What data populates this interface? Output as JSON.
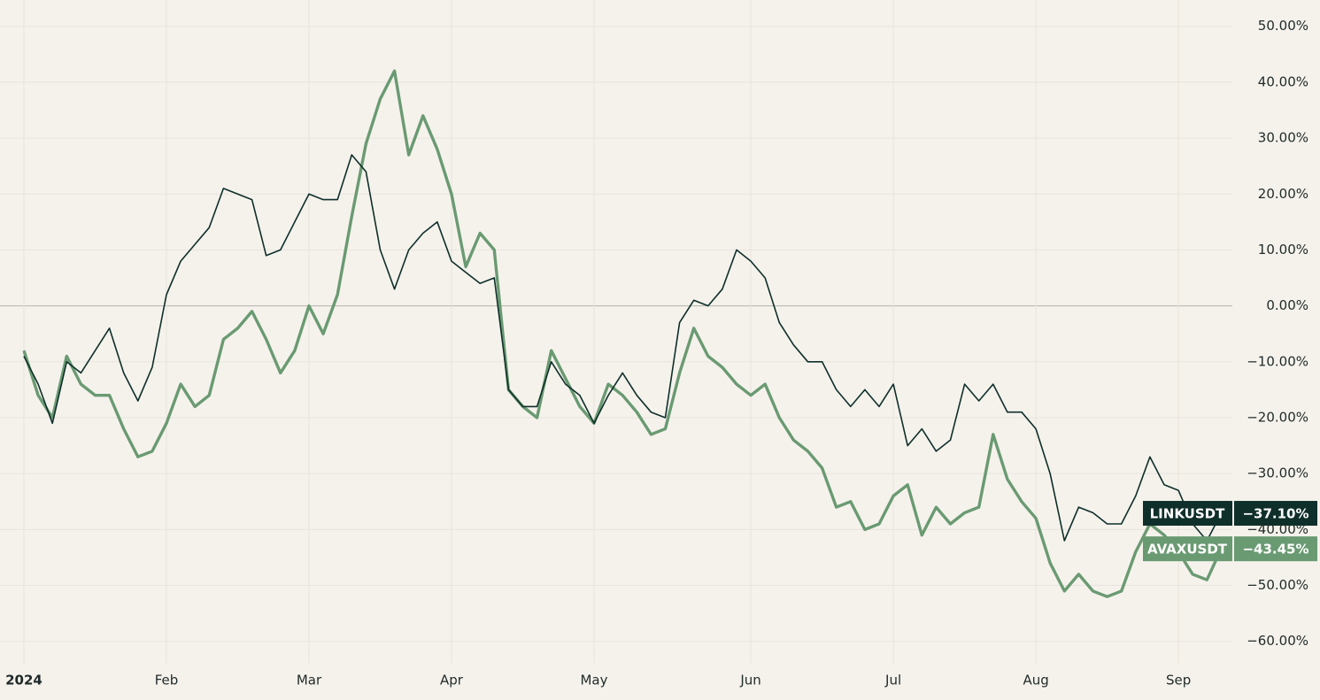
{
  "chart_data": {
    "type": "line",
    "categories": [
      "2024",
      null,
      null,
      null,
      null,
      null,
      null,
      null,
      null,
      null,
      "Feb",
      null,
      null,
      null,
      null,
      null,
      null,
      null,
      null,
      null,
      "Mar",
      null,
      null,
      null,
      null,
      null,
      null,
      null,
      null,
      null,
      "Apr",
      null,
      null,
      null,
      null,
      null,
      null,
      null,
      null,
      null,
      "May",
      null,
      null,
      null,
      null,
      null,
      null,
      null,
      null,
      null,
      null,
      "Jun",
      null,
      null,
      null,
      null,
      null,
      null,
      null,
      null,
      null,
      "Jul",
      null,
      null,
      null,
      null,
      null,
      null,
      null,
      null,
      null,
      "Aug",
      null,
      null,
      null,
      null,
      null,
      null,
      null,
      null,
      null,
      "Sep",
      null,
      null,
      null
    ],
    "series": [
      {
        "name": "LINKUSDT",
        "color": "#0f2f2a",
        "values": [
          -9,
          -14,
          -21,
          -10,
          -12,
          -8,
          -4,
          -12,
          -17,
          -11,
          2,
          8,
          11,
          14,
          21,
          20,
          19,
          9,
          10,
          15,
          20,
          19,
          19,
          27,
          24,
          10,
          3,
          10,
          13,
          15,
          8,
          6,
          4,
          5,
          -15,
          -18,
          -18,
          -10,
          -14,
          -16,
          -21,
          -16,
          -12,
          -16,
          -19,
          -20,
          -3,
          1,
          0,
          3,
          10,
          8,
          5,
          -3,
          -7,
          -10,
          -10,
          -15,
          -18,
          -15,
          -18,
          -14,
          -25,
          -22,
          -26,
          -24,
          -14,
          -17,
          -14,
          -19,
          -19,
          -22,
          -30,
          -42,
          -36,
          -37,
          -39,
          -39,
          -34,
          -27,
          -32,
          -33,
          -39,
          -42,
          -37.1
        ],
        "value_labels": [
          null,
          null,
          null,
          null,
          null,
          null,
          null,
          null,
          null,
          null,
          null,
          null,
          null,
          null,
          null,
          null,
          null,
          null,
          null,
          null,
          null,
          null,
          null,
          null,
          null,
          null,
          null,
          null,
          null,
          null,
          null,
          null,
          null,
          null,
          null,
          null,
          null,
          null,
          null,
          null,
          null,
          null,
          null,
          null,
          null,
          null,
          null,
          null,
          null,
          null,
          null,
          null,
          null,
          null,
          null,
          null,
          null,
          null,
          null,
          null,
          null,
          null,
          null,
          null,
          null,
          null,
          null,
          null,
          null,
          null,
          null,
          null,
          null,
          null,
          null,
          null,
          null,
          null,
          null,
          null,
          null,
          null,
          null,
          null,
          "−37.10%"
        ]
      },
      {
        "name": "AVAXUSDT",
        "color": "#6a9a72",
        "values": [
          -8,
          -16,
          -20,
          -9,
          -14,
          -16,
          -16,
          -22,
          -27,
          -26,
          -21,
          -14,
          -18,
          -16,
          -6,
          -4,
          -1,
          -6,
          -12,
          -8,
          0,
          -5,
          2,
          16,
          29,
          37,
          42,
          27,
          34,
          28,
          20,
          7,
          13,
          10,
          -15,
          -18,
          -20,
          -8,
          -13,
          -18,
          -21,
          -14,
          -16,
          -19,
          -23,
          -22,
          -12,
          -4,
          -9,
          -11,
          -14,
          -16,
          -14,
          -20,
          -24,
          -26,
          -29,
          -36,
          -35,
          -40,
          -39,
          -34,
          -32,
          -41,
          -36,
          -39,
          -37,
          -36,
          -23,
          -31,
          -35,
          -38,
          -46,
          -51,
          -48,
          -51,
          -52,
          -51,
          -44,
          -39,
          -41,
          -44,
          -48,
          -49,
          -43.45
        ],
        "value_labels": [
          null,
          null,
          null,
          null,
          null,
          null,
          null,
          null,
          null,
          null,
          null,
          null,
          null,
          null,
          null,
          null,
          null,
          null,
          null,
          null,
          null,
          null,
          null,
          null,
          null,
          null,
          null,
          null,
          null,
          null,
          null,
          null,
          null,
          null,
          null,
          null,
          null,
          null,
          null,
          null,
          null,
          null,
          null,
          null,
          null,
          null,
          null,
          null,
          null,
          null,
          null,
          null,
          null,
          null,
          null,
          null,
          null,
          null,
          null,
          null,
          null,
          null,
          null,
          null,
          null,
          null,
          null,
          null,
          null,
          null,
          null,
          null,
          null,
          null,
          null,
          null,
          null,
          null,
          null,
          null,
          null,
          null,
          null,
          null,
          "−43.45%"
        ]
      }
    ],
    "ylim": [
      -64,
      54.7
    ],
    "yticks": [
      {
        "value": 50,
        "label": "50.00%"
      },
      {
        "value": 40,
        "label": "40.00%"
      },
      {
        "value": 30,
        "label": "30.00%"
      },
      {
        "value": 20,
        "label": "20.00%"
      },
      {
        "value": 10,
        "label": "10.00%"
      },
      {
        "value": 0,
        "label": "0.00%"
      },
      {
        "value": -10,
        "label": "−10.00%"
      },
      {
        "value": -20,
        "label": "−20.00%"
      },
      {
        "value": -30,
        "label": "−30.00%"
      },
      {
        "value": -40,
        "label": "−40.00%"
      },
      {
        "value": -50,
        "label": "−50.00%"
      },
      {
        "value": -60,
        "label": "−60.00%"
      }
    ],
    "grid": true
  }
}
